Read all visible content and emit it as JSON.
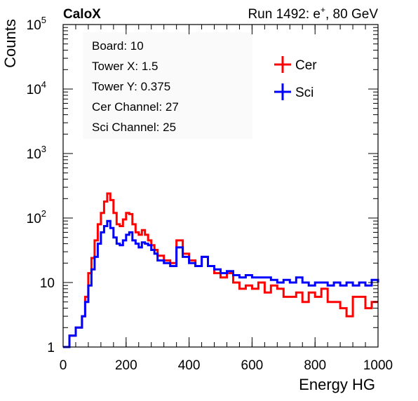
{
  "header": {
    "experiment": "CaloX",
    "run_label": "Run 1492: e",
    "run_sup": "+",
    "run_energy": ", 80 GeV"
  },
  "info_box": {
    "board": "Board: 10",
    "tower_x": "Tower X: 1.5",
    "tower_y": "Tower Y: 0.375",
    "cer_channel": "Cer Channel: 27",
    "sci_channel": "Sci Channel: 25"
  },
  "colors": {
    "cer": "#ff0000",
    "sci": "#0000ff",
    "axis": "#000000"
  },
  "chart_data": {
    "type": "line",
    "xlabel": "Energy HG",
    "ylabel": "Counts",
    "xlim": [
      0,
      1000
    ],
    "ylim": [
      1,
      100000
    ],
    "yscale": "log",
    "x_ticks": [
      "0",
      "200",
      "400",
      "600",
      "800",
      "1000"
    ],
    "y_ticks": [
      {
        "base": "1",
        "exp": ""
      },
      {
        "base": "10",
        "exp": ""
      },
      {
        "base": "10",
        "exp": "2"
      },
      {
        "base": "10",
        "exp": "3"
      },
      {
        "base": "10",
        "exp": "4"
      },
      {
        "base": "10",
        "exp": "5"
      }
    ],
    "legend_position": "top-right",
    "grid": false,
    "series": [
      {
        "name": "Cer",
        "x": [
          0,
          20,
          40,
          60,
          70,
          80,
          90,
          100,
          110,
          120,
          130,
          140,
          150,
          160,
          170,
          180,
          190,
          200,
          210,
          220,
          230,
          240,
          250,
          260,
          270,
          280,
          290,
          300,
          320,
          340,
          360,
          380,
          400,
          420,
          440,
          460,
          480,
          500,
          520,
          540,
          560,
          580,
          600,
          620,
          640,
          660,
          680,
          700,
          720,
          740,
          760,
          780,
          800,
          820,
          840,
          860,
          880,
          900,
          920,
          940,
          960,
          980,
          1000
        ],
        "y": [
          1,
          1.5,
          2,
          3,
          6,
          14,
          24,
          45,
          80,
          120,
          180,
          240,
          190,
          120,
          80,
          75,
          95,
          120,
          115,
          80,
          60,
          55,
          65,
          55,
          45,
          38,
          32,
          26,
          22,
          20,
          45,
          28,
          22,
          18,
          25,
          18,
          14,
          12,
          14,
          10,
          8,
          9,
          8,
          10,
          7,
          9,
          8,
          6,
          6,
          7,
          5,
          7,
          6,
          8,
          5,
          5,
          4,
          3,
          6,
          6,
          4,
          5,
          5
        ]
      },
      {
        "name": "Sci",
        "x": [
          0,
          20,
          40,
          60,
          70,
          80,
          90,
          100,
          110,
          120,
          130,
          140,
          150,
          160,
          170,
          180,
          190,
          200,
          210,
          220,
          230,
          240,
          250,
          260,
          270,
          280,
          290,
          300,
          320,
          340,
          360,
          380,
          400,
          420,
          440,
          460,
          480,
          500,
          520,
          540,
          560,
          580,
          600,
          620,
          640,
          660,
          680,
          700,
          720,
          740,
          760,
          780,
          800,
          820,
          840,
          860,
          880,
          900,
          920,
          940,
          960,
          980,
          1000
        ],
        "y": [
          1,
          1.5,
          2,
          3,
          5,
          9,
          16,
          25,
          40,
          60,
          75,
          90,
          70,
          50,
          40,
          38,
          45,
          55,
          60,
          45,
          40,
          35,
          42,
          40,
          38,
          32,
          28,
          22,
          20,
          18,
          35,
          25,
          20,
          18,
          25,
          18,
          16,
          14,
          15,
          13,
          12,
          13,
          12,
          12,
          12,
          11,
          10,
          11,
          10,
          12,
          10,
          9,
          10,
          10,
          9,
          10,
          9,
          10,
          9,
          10,
          9,
          11,
          10
        ]
      }
    ]
  }
}
